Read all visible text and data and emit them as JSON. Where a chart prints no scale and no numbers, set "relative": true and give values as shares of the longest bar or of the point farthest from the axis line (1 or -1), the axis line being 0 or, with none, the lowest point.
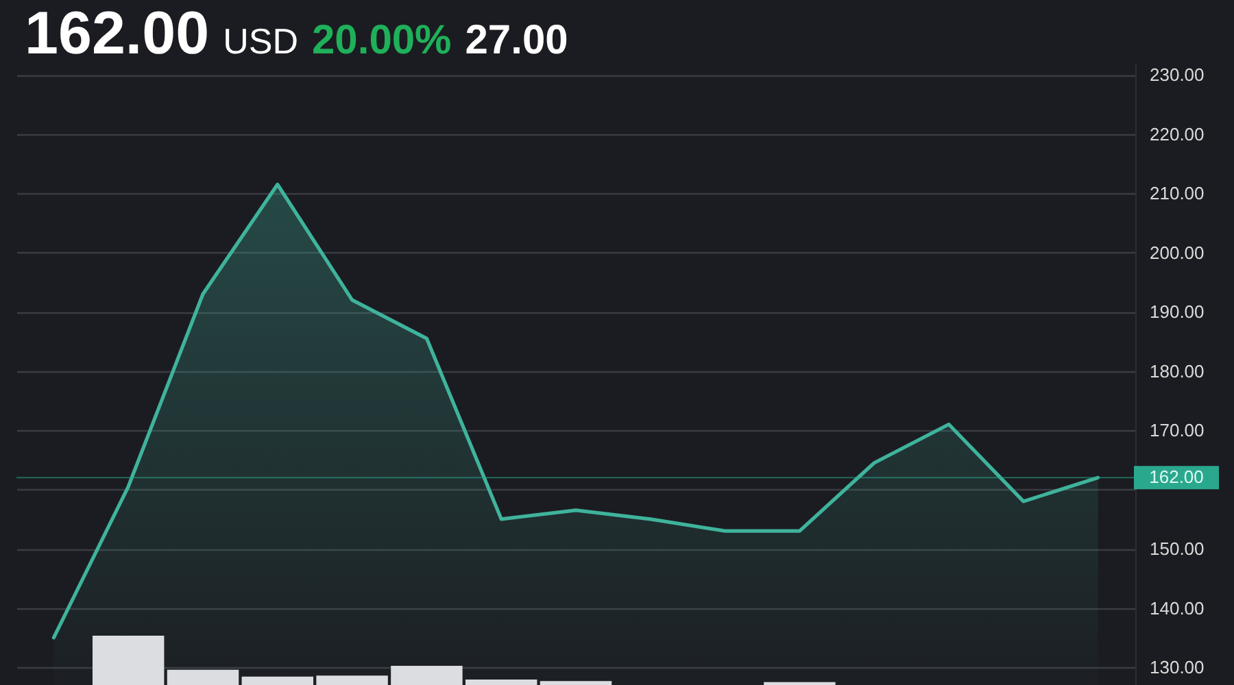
{
  "chart_data": [
    {
      "type": "area",
      "title": "162.00",
      "annotations": [
        "USD",
        "20.00%",
        "27.00"
      ],
      "categories": [
        null,
        null,
        null,
        null,
        null,
        null,
        null,
        null,
        null,
        null,
        null,
        null,
        null,
        null,
        null
      ],
      "series": [
        {
          "color": "#3fb39c",
          "values": [
            135,
            160.5,
            193,
            211.5,
            192,
            185.5,
            155,
            156.5,
            155,
            153,
            153,
            164.5,
            171,
            158,
            162
          ]
        }
      ],
      "ylim": [
        127,
        232
      ],
      "yticks": [
        {
          "value": 130,
          "label": "130.00"
        },
        {
          "value": 140,
          "label": "140.00"
        },
        {
          "value": 150,
          "label": "150.00"
        },
        {
          "value": 160,
          "label": null
        },
        {
          "value": 170,
          "label": "170.00"
        },
        {
          "value": 180,
          "label": "180.00"
        },
        {
          "value": 190,
          "label": "190.00"
        },
        {
          "value": 200,
          "label": "200.00"
        },
        {
          "value": 210,
          "label": "210.00"
        },
        {
          "value": 220,
          "label": "220.00"
        },
        {
          "value": 230,
          "label": "230.00"
        }
      ],
      "grid": "y",
      "tick_labels": "y",
      "ref_lines": [
        {
          "axis": "y",
          "value": 162,
          "label": "162.00",
          "color": "#2aa88e"
        }
      ]
    },
    {
      "type": "bar",
      "relative": true,
      "categories": [
        null,
        null,
        null,
        null,
        null,
        null,
        null,
        null,
        null,
        null,
        null,
        null,
        null,
        null,
        null
      ],
      "series": [
        {
          "color": "#dcdde1",
          "values": [
            null,
            1,
            0.31,
            0.17,
            0.19,
            0.39,
            0.11,
            0.08,
            null,
            null,
            0.06,
            null,
            null,
            null,
            null
          ]
        }
      ],
      "tick_labels": false
    }
  ]
}
